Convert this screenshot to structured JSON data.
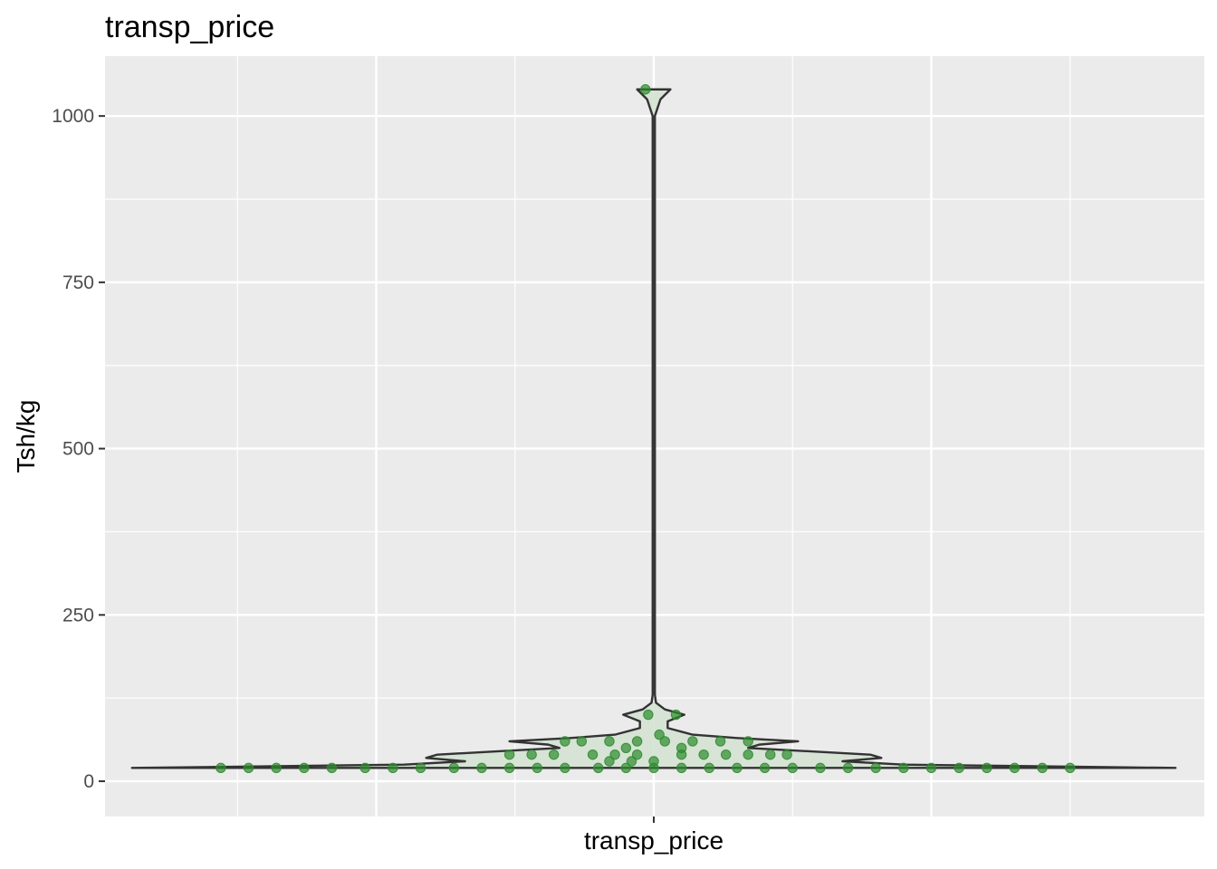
{
  "chart_data": {
    "type": "violin",
    "title": "transp_price",
    "xlabel": "transp_price",
    "ylabel": "Tsh/kg",
    "ylim": [
      -53,
      1090
    ],
    "yticks": [
      0,
      250,
      500,
      750,
      1000
    ],
    "ytick_labels": [
      "0",
      "250",
      "500",
      "750",
      "1000"
    ],
    "grid": true,
    "legend": "none",
    "colors": {
      "panel_background": "#ebebeb",
      "grid": "#ffffff",
      "violin_outline": "#333333",
      "violin_fill": "#d4e2d3",
      "points": "#2e8b2e"
    },
    "density_profile": [
      {
        "y": 20,
        "halfwidth": 0.94
      },
      {
        "y": 25,
        "halfwidth": 0.45
      },
      {
        "y": 30,
        "halfwidth": 0.34
      },
      {
        "y": 35,
        "halfwidth": 0.41
      },
      {
        "y": 40,
        "halfwidth": 0.39
      },
      {
        "y": 45,
        "halfwidth": 0.28
      },
      {
        "y": 50,
        "halfwidth": 0.17
      },
      {
        "y": 55,
        "halfwidth": 0.19
      },
      {
        "y": 60,
        "halfwidth": 0.26
      },
      {
        "y": 65,
        "halfwidth": 0.15
      },
      {
        "y": 70,
        "halfwidth": 0.07
      },
      {
        "y": 80,
        "halfwidth": 0.025
      },
      {
        "y": 90,
        "halfwidth": 0.025
      },
      {
        "y": 100,
        "halfwidth": 0.055
      },
      {
        "y": 108,
        "halfwidth": 0.02
      },
      {
        "y": 118,
        "halfwidth": 0.004
      },
      {
        "y": 130,
        "halfwidth": 0.002
      },
      {
        "y": 1000,
        "halfwidth": 0.002
      },
      {
        "y": 1025,
        "halfwidth": 0.012
      },
      {
        "y": 1040,
        "halfwidth": 0.03
      }
    ],
    "points": [
      {
        "x": -0.78,
        "y": 20
      },
      {
        "x": -0.73,
        "y": 20
      },
      {
        "x": -0.68,
        "y": 20
      },
      {
        "x": -0.63,
        "y": 20
      },
      {
        "x": -0.58,
        "y": 20
      },
      {
        "x": -0.52,
        "y": 20
      },
      {
        "x": -0.47,
        "y": 20
      },
      {
        "x": -0.42,
        "y": 20
      },
      {
        "x": -0.36,
        "y": 20
      },
      {
        "x": -0.31,
        "y": 20
      },
      {
        "x": -0.26,
        "y": 20
      },
      {
        "x": -0.21,
        "y": 20
      },
      {
        "x": -0.16,
        "y": 20
      },
      {
        "x": -0.1,
        "y": 20
      },
      {
        "x": -0.05,
        "y": 20
      },
      {
        "x": 0.0,
        "y": 20
      },
      {
        "x": 0.05,
        "y": 20
      },
      {
        "x": 0.1,
        "y": 20
      },
      {
        "x": 0.15,
        "y": 20
      },
      {
        "x": 0.2,
        "y": 20
      },
      {
        "x": 0.25,
        "y": 20
      },
      {
        "x": 0.3,
        "y": 20
      },
      {
        "x": 0.35,
        "y": 20
      },
      {
        "x": 0.4,
        "y": 20
      },
      {
        "x": 0.45,
        "y": 20
      },
      {
        "x": 0.5,
        "y": 20
      },
      {
        "x": 0.55,
        "y": 20
      },
      {
        "x": 0.6,
        "y": 20
      },
      {
        "x": 0.65,
        "y": 20
      },
      {
        "x": 0.7,
        "y": 20
      },
      {
        "x": 0.75,
        "y": 20
      },
      {
        "x": -0.08,
        "y": 30
      },
      {
        "x": -0.04,
        "y": 30
      },
      {
        "x": 0.0,
        "y": 30
      },
      {
        "x": -0.26,
        "y": 40
      },
      {
        "x": -0.22,
        "y": 40
      },
      {
        "x": -0.18,
        "y": 40
      },
      {
        "x": -0.11,
        "y": 40
      },
      {
        "x": -0.07,
        "y": 40
      },
      {
        "x": -0.03,
        "y": 40
      },
      {
        "x": 0.05,
        "y": 40
      },
      {
        "x": 0.09,
        "y": 40
      },
      {
        "x": 0.13,
        "y": 40
      },
      {
        "x": 0.17,
        "y": 40
      },
      {
        "x": 0.21,
        "y": 40
      },
      {
        "x": 0.24,
        "y": 40
      },
      {
        "x": -0.05,
        "y": 50
      },
      {
        "x": 0.05,
        "y": 50
      },
      {
        "x": -0.16,
        "y": 60
      },
      {
        "x": -0.13,
        "y": 60
      },
      {
        "x": -0.08,
        "y": 60
      },
      {
        "x": -0.03,
        "y": 60
      },
      {
        "x": 0.02,
        "y": 60
      },
      {
        "x": 0.07,
        "y": 60
      },
      {
        "x": 0.12,
        "y": 60
      },
      {
        "x": 0.17,
        "y": 60
      },
      {
        "x": 0.01,
        "y": 70
      },
      {
        "x": -0.01,
        "y": 100
      },
      {
        "x": 0.04,
        "y": 100
      },
      {
        "x": -0.015,
        "y": 1040
      }
    ]
  }
}
